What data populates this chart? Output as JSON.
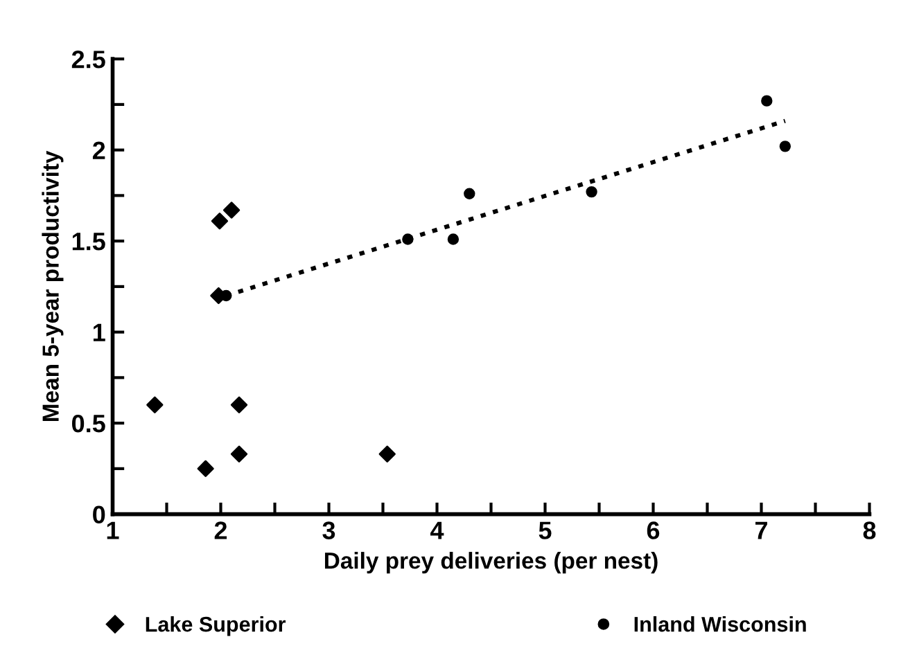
{
  "chart_data": {
    "type": "scatter",
    "xlabel": "Daily prey deliveries (per nest)",
    "ylabel": "Mean 5-year productivity",
    "xlim": [
      1,
      8
    ],
    "ylim": [
      0,
      2.5
    ],
    "xticks": [
      1,
      {
        "value": 1.5,
        "label": null
      },
      2,
      {
        "value": 2.5,
        "label": null
      },
      3,
      {
        "value": 3.5,
        "label": null
      },
      4,
      {
        "value": 4.5,
        "label": null
      },
      5,
      {
        "value": 5.5,
        "label": null
      },
      6,
      {
        "value": 6.5,
        "label": null
      },
      7,
      {
        "value": 7.5,
        "label": null
      },
      8
    ],
    "yticks": [
      0,
      {
        "value": 0.25,
        "label": null
      },
      0.5,
      {
        "value": 0.75,
        "label": null
      },
      1,
      {
        "value": 1.25,
        "label": null
      },
      1.5,
      {
        "value": 1.75,
        "label": null
      },
      2,
      {
        "value": 2.25,
        "label": null
      },
      2.5
    ],
    "grid": false,
    "legend": "bottom",
    "series": [
      {
        "name": "Lake Superior",
        "color": "#000000",
        "marker": "diamond",
        "x": [
          1.39,
          1.86,
          2.17,
          2.17,
          1.99,
          2.1,
          1.98,
          3.54
        ],
        "values": [
          0.6,
          0.25,
          0.33,
          0.6,
          1.61,
          1.67,
          1.2,
          0.33
        ]
      },
      {
        "name": "Inland Wisconsin",
        "color": "#000000",
        "marker": "circle",
        "x": [
          2.05,
          3.73,
          4.15,
          4.3,
          5.43,
          7.05,
          7.22
        ],
        "values": [
          1.2,
          1.51,
          1.51,
          1.76,
          1.77,
          2.27,
          2.02
        ]
      },
      {
        "type": "line",
        "color": "#000000",
        "marker": "none",
        "line_style": "dotted",
        "x": [
          2.05,
          7.22
        ],
        "values": [
          1.2,
          2.16
        ]
      }
    ]
  }
}
